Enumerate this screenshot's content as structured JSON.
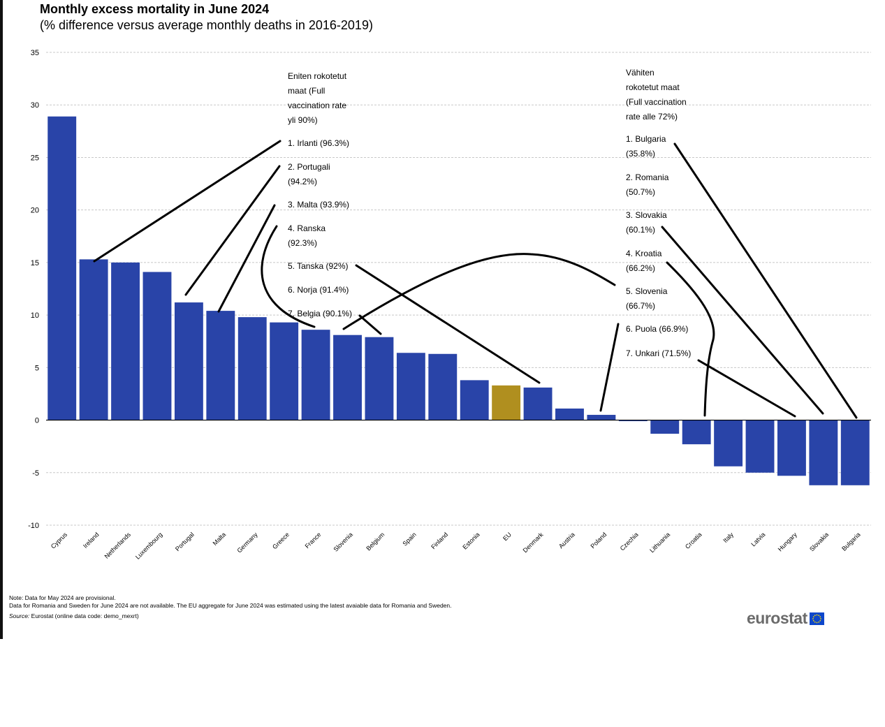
{
  "title": "Monthly  excess mortality  in June 2024",
  "subtitle": "(% difference versus average monthly  deaths in 2016-2019)",
  "notes": {
    "line1": "Note: Data  for May 2024 are provisional.",
    "line2": "Data for Romania  and Sweden for June 2024 are not available.  The  EU aggregate for June 2024  was estimated using the latest avaiable data for Romania and Sweden.",
    "source_label": "Source:",
    "source_text": " Eurostat (online data code: demo_mexrt)"
  },
  "logo": {
    "text": "eurostat",
    "flag_color": "#0e47cb",
    "star_color": "#ffde00"
  },
  "colors": {
    "bar": "#2944a8",
    "eu_bar": "#b08f1f",
    "grid": "#c8c8c8",
    "axis": "#000000",
    "line": "#000000"
  },
  "chart_data": {
    "type": "bar",
    "title": "Monthly  excess mortality  in June 2024",
    "subtitle": "(% difference versus average monthly  deaths in 2016-2019)",
    "categories": [
      "Cyprus",
      "Ireland",
      "Netherlands",
      "Luxembourg",
      "Portugal",
      "Malta",
      "Germany",
      "Greece",
      "France",
      "Slovenia",
      "Belgium",
      "Spain",
      "Finland",
      "Estonia",
      "EU",
      "Denmark",
      "Austria",
      "Poland",
      "Czechia",
      "Lithuania",
      "Croatia",
      "Italy",
      "Latvia",
      "Hungary",
      "Slovakia",
      "Bulgaria"
    ],
    "values": [
      28.9,
      15.3,
      15.0,
      14.1,
      11.2,
      10.4,
      9.8,
      9.3,
      8.6,
      8.1,
      7.9,
      6.4,
      6.3,
      3.8,
      3.3,
      3.1,
      1.1,
      0.5,
      -0.1,
      -1.3,
      -2.3,
      -4.4,
      -5.0,
      -5.3,
      -6.2,
      -6.2
    ],
    "highlight": "EU",
    "ylim": [
      -10,
      35
    ],
    "yticks": [
      -10,
      -5,
      0,
      5,
      10,
      15,
      20,
      25,
      30,
      35
    ],
    "grid": "horizontal dashed",
    "xlabel": "",
    "ylabel": "",
    "annotations": {
      "left": {
        "header": [
          "Eniten rokotetut",
          "maat  (Full",
          "vaccination rate",
          "yli 90%)"
        ],
        "items": [
          [
            "1. Irlanti (96.3%)"
          ],
          [
            "2. Portugali",
            "(94.2%)"
          ],
          [
            "3. Malta (93.9%)"
          ],
          [
            "4. Ranska",
            "(92.3%)"
          ],
          [
            "5. Tanska (92%)"
          ],
          [
            "6. Norja (91.4%)"
          ],
          [
            "7. Belgia (90.1%)"
          ]
        ]
      },
      "right": {
        "header": [
          "Vähiten",
          "rokotetut maat",
          "(Full vaccination",
          "rate alle 72%)"
        ],
        "items": [
          [
            "1. Bulgaria",
            "(35.8%)"
          ],
          [
            "2. Romania",
            "(50.7%)"
          ],
          [
            "3. Slovakia",
            "(60.1%)"
          ],
          [
            "4. Kroatia",
            "(66.2%)"
          ],
          [
            "5. Slovenia",
            "(66.7%)"
          ],
          [
            "6. Puola (66.9%)"
          ],
          [
            "7. Unkari (71.5%)"
          ]
        ]
      }
    }
  }
}
